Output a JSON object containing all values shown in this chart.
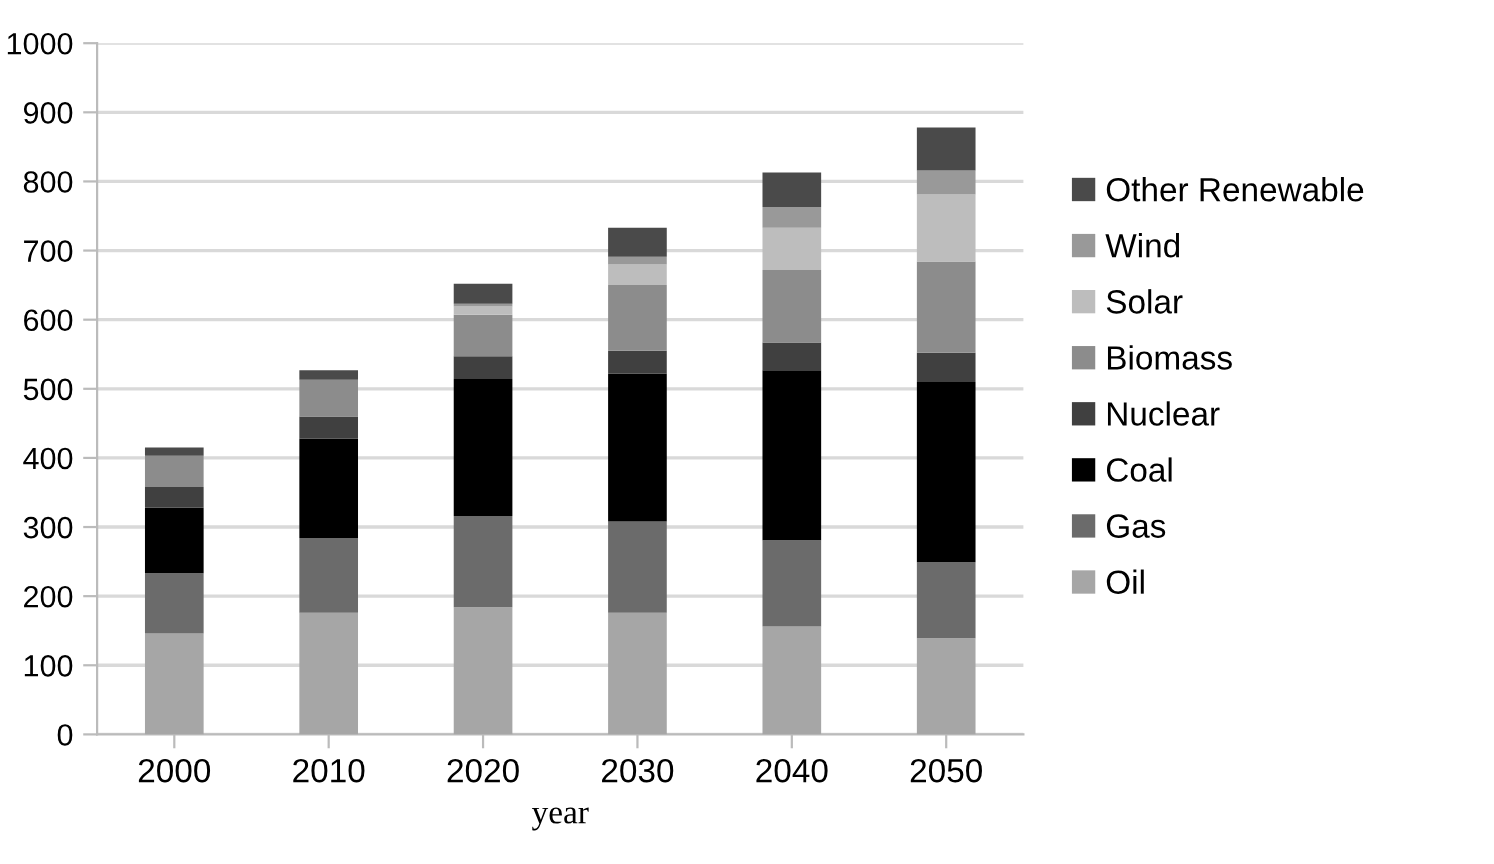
{
  "chart_data": {
    "type": "bar",
    "stacked": true,
    "xlabel": "year",
    "categories": [
      "2000",
      "2010",
      "2020",
      "2030",
      "2040",
      "2050"
    ],
    "series": [
      {
        "name": "Oil",
        "color": "#a6a6a6",
        "values": [
          146,
          176,
          184,
          176,
          156,
          139
        ]
      },
      {
        "name": "Gas",
        "color": "#6b6b6b",
        "values": [
          87,
          108,
          132,
          132,
          125,
          110
        ]
      },
      {
        "name": "Coal",
        "color": "#000000",
        "values": [
          95,
          144,
          198,
          214,
          246,
          261
        ]
      },
      {
        "name": "Nuclear",
        "color": "#404040",
        "values": [
          30,
          32,
          33,
          33,
          40,
          42
        ]
      },
      {
        "name": "Biomass",
        "color": "#8c8c8c",
        "values": [
          45,
          53,
          60,
          95,
          105,
          132
        ]
      },
      {
        "name": "Solar",
        "color": "#bdbdbd",
        "values": [
          0,
          0,
          12,
          30,
          61,
          97
        ]
      },
      {
        "name": "Wind",
        "color": "#999999",
        "values": [
          0,
          0,
          4,
          11,
          30,
          35
        ]
      },
      {
        "name": "Other Renewable",
        "color": "#4a4a4a",
        "values": [
          12,
          14,
          29,
          42,
          50,
          62
        ]
      }
    ],
    "ylim": [
      0,
      1000
    ],
    "yticks": [
      0,
      100,
      200,
      300,
      400,
      500,
      600,
      700,
      800,
      900,
      1000
    ],
    "grid": "y",
    "legend": "right"
  }
}
